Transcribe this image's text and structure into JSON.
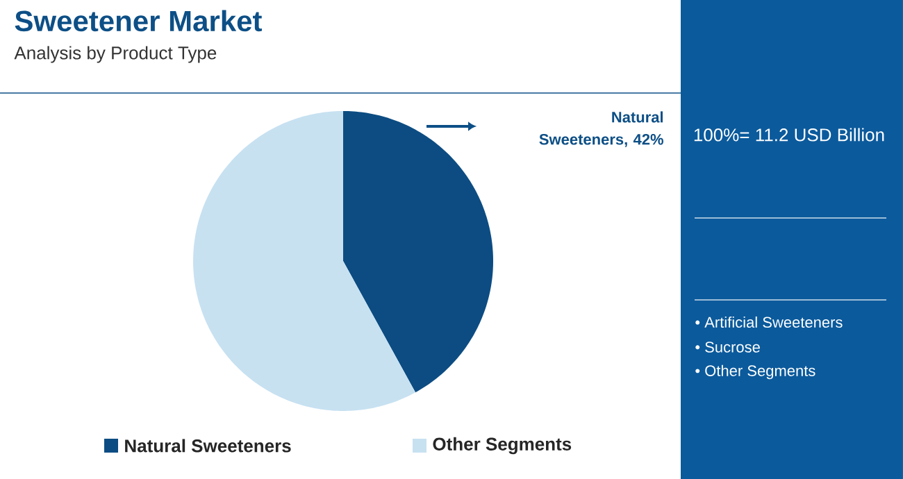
{
  "chart_data": {
    "type": "pie",
    "title": "Sweetener Market",
    "subtitle": "Analysis by Product Type",
    "categories": [
      "Natural Sweeteners",
      "Other Segments"
    ],
    "values": [
      42,
      58
    ],
    "colors": [
      "#0c4c82",
      "#c7e1f1"
    ],
    "legend": "bottom",
    "annotations": [
      "Natural Sweeteners, 42%",
      "100%= 11.2 USD Billion",
      "• Artificial Sweeteners",
      "• Sucrose",
      "• Other Segments"
    ]
  }
}
